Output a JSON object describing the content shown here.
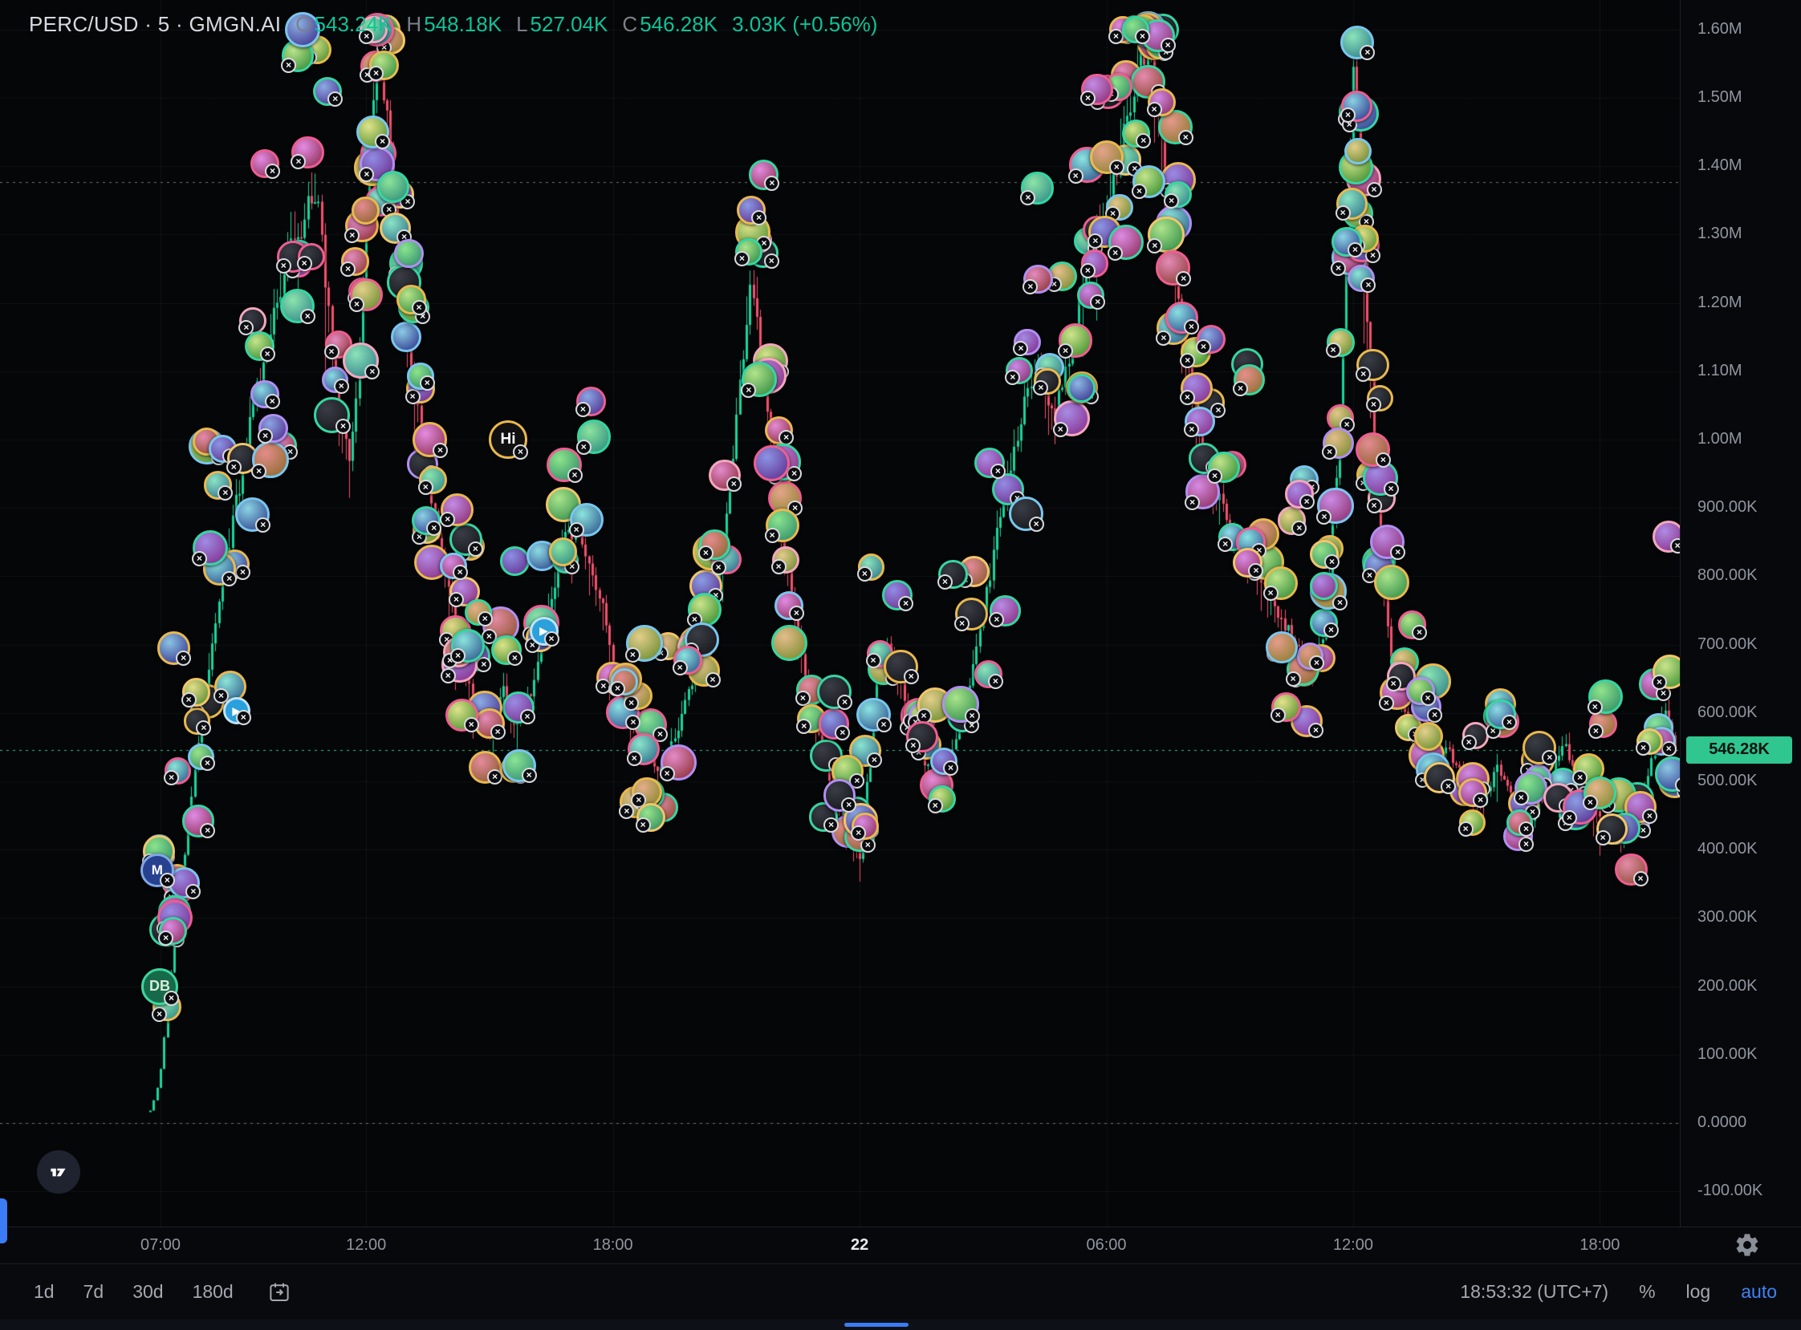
{
  "header": {
    "title": "PERC/USD · 5 · GMGN.AI",
    "o_key": "O",
    "o_val": "543.24K",
    "h_key": "H",
    "h_val": "548.18K",
    "l_key": "L",
    "l_val": "527.04K",
    "c_key": "C",
    "c_val": "546.28K",
    "change": "3.03K (+0.56%)"
  },
  "price_axis": {
    "ticks": [
      {
        "value": 1600000,
        "label": "1.60M"
      },
      {
        "value": 1500000,
        "label": "1.50M"
      },
      {
        "value": 1400000,
        "label": "1.40M"
      },
      {
        "value": 1300000,
        "label": "1.30M"
      },
      {
        "value": 1200000,
        "label": "1.20M"
      },
      {
        "value": 1100000,
        "label": "1.10M"
      },
      {
        "value": 1000000,
        "label": "1.00M"
      },
      {
        "value": 900000,
        "label": "900.00K"
      },
      {
        "value": 800000,
        "label": "800.00K"
      },
      {
        "value": 700000,
        "label": "700.00K"
      },
      {
        "value": 600000,
        "label": "600.00K"
      },
      {
        "value": 500000,
        "label": "500.00K"
      },
      {
        "value": 400000,
        "label": "400.00K"
      },
      {
        "value": 300000,
        "label": "300.00K"
      },
      {
        "value": 200000,
        "label": "200.00K"
      },
      {
        "value": 100000,
        "label": "100.00K"
      },
      {
        "value": 0,
        "label": "0.0000"
      },
      {
        "value": -100000,
        "label": "-100.00K"
      }
    ],
    "last": {
      "value": 546280,
      "label": "546.28K"
    }
  },
  "time_axis": {
    "labels": [
      {
        "h": 0,
        "label": "07:00",
        "bold": false
      },
      {
        "h": 5,
        "label": "12:00",
        "bold": false
      },
      {
        "h": 11,
        "label": "18:00",
        "bold": false
      },
      {
        "h": 17,
        "label": "22",
        "bold": true
      },
      {
        "h": 23,
        "label": "06:00",
        "bold": false
      },
      {
        "h": 29,
        "label": "12:00",
        "bold": false
      },
      {
        "h": 35,
        "label": "18:00",
        "bold": false
      }
    ]
  },
  "toolbar": {
    "ranges": [
      "1d",
      "7d",
      "30d",
      "180d"
    ],
    "clock": "18:53:32 (UTC+7)",
    "percent": "%",
    "log": "log",
    "auto": "auto"
  },
  "icons": {
    "x_badge": "×",
    "telegram_play": "▶"
  },
  "chart_data": {
    "type": "candlestick",
    "symbol": "PERC/USD",
    "interval_minutes": 5,
    "provider": "GMGN.AI",
    "title": "PERC/USD · 5 · GMGN.AI",
    "ohlc_display": {
      "open": "543.24K",
      "high": "548.18K",
      "low": "527.04K",
      "close": "546.28K",
      "change": "3.03K (+0.56%)"
    },
    "last_price": 546280,
    "ylim": [
      -150000,
      1650000
    ],
    "grid": true,
    "candle_start": -0.25,
    "candle_end": 36.85,
    "reference_lines": [
      {
        "price": 1377000,
        "color": "#70737b"
      },
      {
        "price": 0,
        "color": "#70737b"
      },
      {
        "price": 546280,
        "color": "#2fc690"
      }
    ],
    "price_path": [
      [
        -0.25,
        18
      ],
      [
        -0.1,
        45
      ],
      [
        0,
        80
      ],
      [
        0.25,
        220
      ],
      [
        0.5,
        360
      ],
      [
        0.8,
        500
      ],
      [
        1.1,
        640
      ],
      [
        1.5,
        790
      ],
      [
        1.9,
        930
      ],
      [
        2.3,
        1060
      ],
      [
        2.7,
        1180
      ],
      [
        3.1,
        1270
      ],
      [
        3.5,
        1330
      ],
      [
        3.8,
        1360
      ],
      [
        4,
        1240
      ],
      [
        4.3,
        1060
      ],
      [
        4.6,
        980
      ],
      [
        4.85,
        1120
      ],
      [
        5.05,
        1380
      ],
      [
        5.25,
        1560
      ],
      [
        5.45,
        1500
      ],
      [
        5.7,
        1340
      ],
      [
        6,
        1160
      ],
      [
        6.4,
        980
      ],
      [
        6.8,
        850
      ],
      [
        7.2,
        720
      ],
      [
        7.6,
        610
      ],
      [
        8,
        570
      ],
      [
        8.3,
        640
      ],
      [
        8.6,
        580
      ],
      [
        9,
        630
      ],
      [
        9.4,
        740
      ],
      [
        9.8,
        850
      ],
      [
        10.2,
        870
      ],
      [
        10.6,
        790
      ],
      [
        11,
        680
      ],
      [
        11.4,
        590
      ],
      [
        11.8,
        545
      ],
      [
        12.2,
        515
      ],
      [
        12.6,
        585
      ],
      [
        13,
        660
      ],
      [
        13.4,
        760
      ],
      [
        13.8,
        900
      ],
      [
        14.1,
        1080
      ],
      [
        14.35,
        1240
      ],
      [
        14.6,
        1120
      ],
      [
        14.9,
        960
      ],
      [
        15.2,
        830
      ],
      [
        15.6,
        680
      ],
      [
        16,
        560
      ],
      [
        16.4,
        480
      ],
      [
        16.8,
        420
      ],
      [
        17,
        390
      ],
      [
        17.2,
        520
      ],
      [
        17.45,
        660
      ],
      [
        17.7,
        700
      ],
      [
        18.1,
        620
      ],
      [
        18.5,
        540
      ],
      [
        18.9,
        500
      ],
      [
        19.3,
        560
      ],
      [
        19.7,
        650
      ],
      [
        20.1,
        780
      ],
      [
        20.5,
        920
      ],
      [
        20.9,
        1030
      ],
      [
        21.3,
        1100
      ],
      [
        21.7,
        1040
      ],
      [
        22.1,
        1120
      ],
      [
        22.5,
        1240
      ],
      [
        22.9,
        1330
      ],
      [
        23.3,
        1420
      ],
      [
        23.7,
        1520
      ],
      [
        24,
        1590
      ],
      [
        24.3,
        1480
      ],
      [
        24.6,
        1300
      ],
      [
        24.9,
        1150
      ],
      [
        25.2,
        1020
      ],
      [
        25.6,
        930
      ],
      [
        26,
        880
      ],
      [
        26.4,
        840
      ],
      [
        26.8,
        790
      ],
      [
        27.2,
        740
      ],
      [
        27.6,
        700
      ],
      [
        28,
        660
      ],
      [
        28.3,
        720
      ],
      [
        28.6,
        950
      ],
      [
        28.85,
        1280
      ],
      [
        29,
        1540
      ],
      [
        29.15,
        1400
      ],
      [
        29.35,
        1150
      ],
      [
        29.6,
        900
      ],
      [
        29.85,
        720
      ],
      [
        30.1,
        620
      ],
      [
        30.5,
        560
      ],
      [
        30.9,
        510
      ],
      [
        31.3,
        545
      ],
      [
        31.7,
        500
      ],
      [
        32.1,
        465
      ],
      [
        32.5,
        520
      ],
      [
        32.9,
        480
      ],
      [
        33.3,
        435
      ],
      [
        33.7,
        495
      ],
      [
        34.1,
        555
      ],
      [
        34.5,
        505
      ],
      [
        34.9,
        455
      ],
      [
        35.3,
        430
      ],
      [
        35.7,
        415
      ],
      [
        36,
        470
      ],
      [
        36.3,
        545
      ],
      [
        36.6,
        610
      ],
      [
        36.85,
        546.28
      ]
    ],
    "colors": {
      "up": "#19d69c",
      "down": "#f4506e",
      "grid": "rgba(255,255,255,0.05)",
      "axis_text": "#9095a0",
      "badge_bg": "#2fc690",
      "badge_text": "#0a120e"
    },
    "marker_palette": [
      "#e9b94d",
      "#ef5d92",
      "#35d6a2",
      "#f3a7bd",
      "#e9b94d",
      "#35d6a2",
      "#ef5d92",
      "#79c6ee",
      "#b18ff2",
      "#e9b94d",
      "#35d6a2",
      "#f2c569"
    ],
    "marker_clusters": [
      [
        -0.2,
        4.8,
        48,
        0.26,
        420
      ],
      [
        4.85,
        6.6,
        34,
        0.12,
        120
      ],
      [
        6.6,
        9.6,
        26,
        0.18,
        200
      ],
      [
        9.6,
        12.6,
        22,
        0.2,
        220
      ],
      [
        12.8,
        15.3,
        30,
        0.15,
        220
      ],
      [
        15.3,
        17.6,
        18,
        0.2,
        160
      ],
      [
        17.6,
        22.6,
        34,
        0.2,
        240
      ],
      [
        22.6,
        25.6,
        44,
        0.13,
        150
      ],
      [
        25.6,
        28.5,
        26,
        0.16,
        200
      ],
      [
        28.55,
        29.7,
        26,
        0.1,
        120
      ],
      [
        29.7,
        33.2,
        26,
        0.2,
        150
      ],
      [
        33.2,
        36.85,
        28,
        0.2,
        150
      ]
    ],
    "special_markers": [
      {
        "label": "Hi",
        "h": 8.45,
        "price_k": 1000,
        "size": 48,
        "bg": "#101010",
        "fg": "#ffffff",
        "ring": "#e9b94d"
      },
      {
        "label": "▶",
        "h": 9.32,
        "price_k": 720,
        "size": 36,
        "bg": "#2aa0dc",
        "fg": "#ffffff",
        "ring": "#bfe3f7"
      },
      {
        "label": "▶",
        "h": 1.85,
        "price_k": 603,
        "size": 34,
        "bg": "#2aa0dc",
        "fg": "#ffffff",
        "ring": "#bfe3f7"
      },
      {
        "label": "M",
        "h": -0.08,
        "price_k": 370,
        "size": 42,
        "bg": "#27418f",
        "fg": "#ffffff",
        "ring": "#7fa8e8"
      },
      {
        "label": "DB",
        "h": -0.02,
        "price_k": 200,
        "size": 46,
        "bg": "#176a49",
        "fg": "#d8ead9",
        "ring": "#3bd6a0"
      }
    ]
  }
}
